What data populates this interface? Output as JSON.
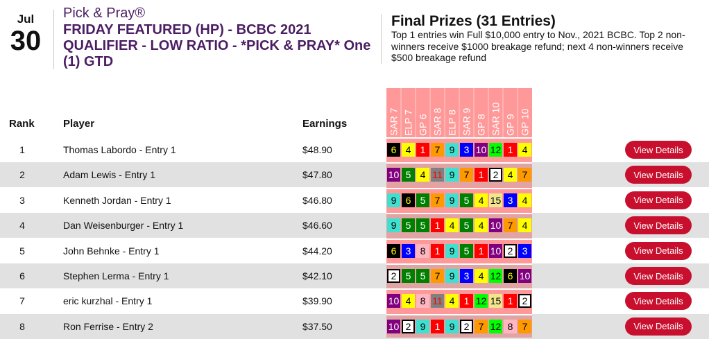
{
  "date": {
    "month": "Jul",
    "day": "30"
  },
  "brand": "Pick & Pray®",
  "title": "FRIDAY FEATURED (HP) - BCBC 2021 QUALIFIER - LOW RATIO - *PICK & PRAY* One (1) GTD",
  "prizes": {
    "heading": "Final Prizes (31 Entries)",
    "text": "Top 1 entries win Full $10,000 entry to Nov., 2021 BCBC. Top 2 non-winners receive $1000 breakage refund; next 4 non-winners receive $500 breakage refund"
  },
  "columns": {
    "rank": "Rank",
    "player": "Player",
    "earnings": "Earnings"
  },
  "races": [
    "SAR 7",
    "ELP 7",
    "GP 6",
    "SAR 8",
    "ELP 8",
    "SAR 9",
    "GP 8",
    "SAR 10",
    "GP 9",
    "GP 10"
  ],
  "button_label": "View Details",
  "saddle_colors": {
    "1": [
      "#ff0000",
      "#fff"
    ],
    "2": [
      "#fff",
      "#000"
    ],
    "3": [
      "#0000ff",
      "#fff"
    ],
    "4": [
      "#ffff00",
      "#000"
    ],
    "5": [
      "#008000",
      "#fff"
    ],
    "6": [
      "#000",
      "#ffff00"
    ],
    "7": [
      "#ff9900",
      "#000"
    ],
    "8": [
      "#ffb6c1",
      "#000"
    ],
    "9": [
      "#40e0d0",
      "#000"
    ],
    "10": [
      "#800080",
      "#fff"
    ],
    "11": [
      "#808080",
      "#ff0000"
    ],
    "12": [
      "#00ff00",
      "#000"
    ],
    "15": [
      "#f0e68c",
      "#000"
    ]
  },
  "rows": [
    {
      "rank": "1",
      "player": "Thomas Labordo - Entry 1",
      "earnings": "$48.90",
      "picks": [
        "6",
        "4",
        "1",
        "7",
        "9",
        "3",
        "10",
        "12",
        "1",
        "4"
      ]
    },
    {
      "rank": "2",
      "player": "Adam Lewis - Entry 1",
      "earnings": "$47.80",
      "picks": [
        "10",
        "5",
        "4",
        "11",
        "9",
        "7",
        "1",
        "2",
        "4",
        "7"
      ]
    },
    {
      "rank": "3",
      "player": "Kenneth Jordan - Entry 1",
      "earnings": "$46.80",
      "picks": [
        "9",
        "6",
        "5",
        "7",
        "9",
        "5",
        "4",
        "15",
        "3",
        "4"
      ]
    },
    {
      "rank": "4",
      "player": "Dan Weisenburger - Entry 1",
      "earnings": "$46.60",
      "picks": [
        "9",
        "5",
        "5",
        "1",
        "4",
        "5",
        "4",
        "10",
        "7",
        "4"
      ]
    },
    {
      "rank": "5",
      "player": "John Behnke - Entry 1",
      "earnings": "$44.20",
      "picks": [
        "6",
        "3",
        "8",
        "1",
        "9",
        "5",
        "1",
        "10",
        "2",
        "3"
      ]
    },
    {
      "rank": "6",
      "player": "Stephen Lerma - Entry 1",
      "earnings": "$42.10",
      "picks": [
        "2",
        "5",
        "5",
        "7",
        "9",
        "3",
        "4",
        "12",
        "6",
        "10"
      ]
    },
    {
      "rank": "7",
      "player": "eric kurzhal - Entry 1",
      "earnings": "$39.90",
      "picks": [
        "10",
        "4",
        "8",
        "11",
        "4",
        "1",
        "12",
        "15",
        "1",
        "2"
      ]
    },
    {
      "rank": "8",
      "player": "Ron Ferrise - Entry 2",
      "earnings": "$37.50",
      "picks": [
        "10",
        "2",
        "9",
        "1",
        "9",
        "2",
        "7",
        "12",
        "8",
        "7"
      ]
    }
  ]
}
